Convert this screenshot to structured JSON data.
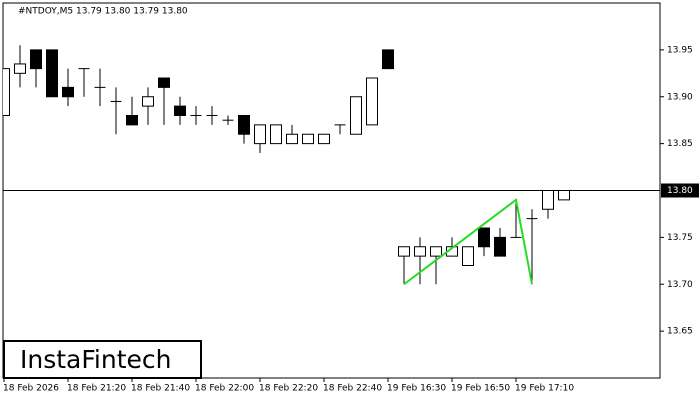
{
  "chart_data": {
    "type": "candlestick",
    "title": "#NTDOY,M5  13.79 13.80 13.79 13.80",
    "logo": "InstaFintech",
    "categories": [
      "18 Feb 2026",
      null,
      null,
      null,
      "18 Feb 21:20",
      null,
      null,
      null,
      "18 Feb 21:40",
      null,
      null,
      null,
      "18 Feb 22:00",
      null,
      null,
      null,
      "18 Feb 22:20",
      null,
      null,
      null,
      "18 Feb 22:40",
      null,
      null,
      null,
      "19 Feb 16:30",
      null,
      null,
      null,
      "19 Feb 16:50",
      null,
      null,
      null,
      "19 Feb 17:10",
      null,
      null,
      null
    ],
    "open": [
      13.88,
      13.925,
      13.95,
      13.95,
      13.91,
      13.93,
      13.91,
      13.895,
      13.88,
      13.89,
      13.92,
      13.89,
      13.88,
      13.88,
      13.875,
      13.88,
      13.85,
      13.85,
      13.85,
      13.85,
      13.85,
      13.87,
      13.86,
      13.87,
      13.95,
      13.73,
      13.73,
      13.73,
      13.73,
      13.72,
      13.76,
      13.75,
      13.75,
      13.77,
      13.78,
      13.79
    ],
    "high": [
      13.93,
      13.955,
      13.95,
      13.95,
      13.93,
      13.93,
      13.93,
      13.91,
      13.9,
      13.91,
      13.92,
      13.9,
      13.89,
      13.89,
      13.88,
      13.88,
      13.87,
      13.87,
      13.87,
      13.86,
      13.86,
      13.87,
      13.9,
      13.92,
      13.95,
      13.74,
      13.75,
      13.74,
      13.75,
      13.74,
      13.76,
      13.76,
      13.79,
      13.78,
      13.8,
      13.8
    ],
    "low": [
      13.88,
      13.91,
      13.91,
      13.9,
      13.89,
      13.9,
      13.89,
      13.86,
      13.87,
      13.87,
      13.87,
      13.87,
      13.87,
      13.87,
      13.87,
      13.85,
      13.84,
      13.85,
      13.85,
      13.85,
      13.85,
      13.86,
      13.86,
      13.87,
      13.93,
      13.7,
      13.7,
      13.7,
      13.73,
      13.72,
      13.73,
      13.73,
      13.75,
      13.7,
      13.77,
      13.79
    ],
    "close": [
      13.93,
      13.935,
      13.93,
      13.9,
      13.9,
      13.93,
      13.91,
      13.895,
      13.87,
      13.9,
      13.91,
      13.88,
      13.88,
      13.88,
      13.875,
      13.86,
      13.87,
      13.87,
      13.86,
      13.86,
      13.86,
      13.87,
      13.9,
      13.92,
      13.93,
      13.74,
      13.74,
      13.74,
      13.74,
      13.74,
      13.74,
      13.73,
      13.75,
      13.77,
      13.8,
      13.8
    ],
    "ylim": [
      13.6,
      14.0
    ],
    "yticks": [
      {
        "value": 13.65,
        "label": "13.65"
      },
      {
        "value": 13.7,
        "label": "13.70"
      },
      {
        "value": 13.75,
        "label": "13.75"
      },
      {
        "value": 13.85,
        "label": "13.85"
      },
      {
        "value": 13.9,
        "label": "13.90"
      },
      {
        "value": 13.95,
        "label": "13.95"
      }
    ],
    "price_line": {
      "value": 13.8,
      "label": "13.80"
    },
    "pattern": {
      "color": "#22dd22",
      "x": [
        25,
        32,
        33
      ],
      "values": [
        13.7,
        13.79,
        13.7
      ]
    }
  }
}
